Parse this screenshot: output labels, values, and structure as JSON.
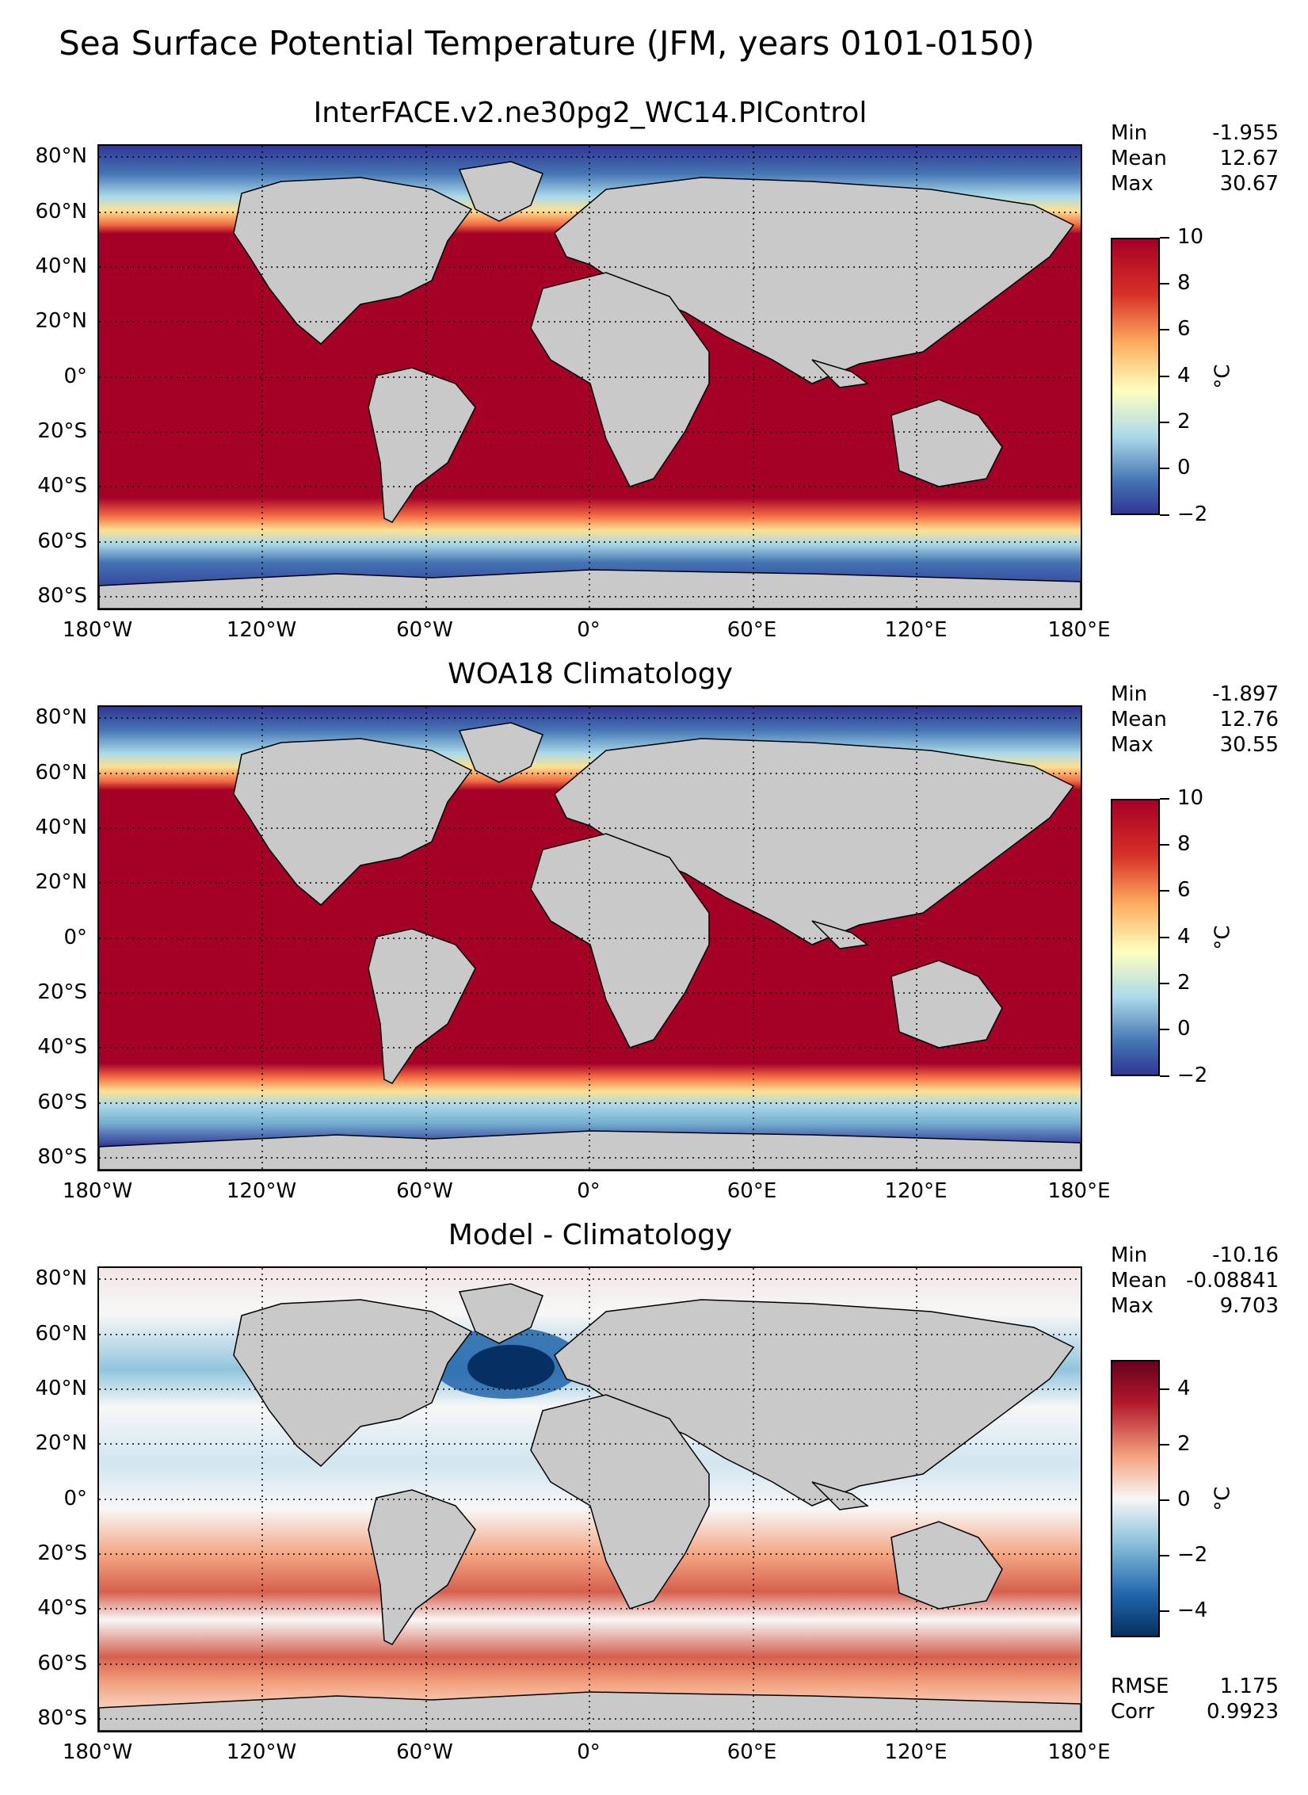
{
  "figure": {
    "suptitle": "Sea Surface Potential Temperature (JFM, years 0101-0150)"
  },
  "axes": {
    "lat_labels": [
      "80°N",
      "60°N",
      "40°N",
      "20°N",
      "0°",
      "20°S",
      "40°S",
      "60°S",
      "80°S"
    ],
    "lon_labels": [
      "180°W",
      "120°W",
      "60°W",
      "0°",
      "60°E",
      "120°E",
      "180°E"
    ]
  },
  "panels": [
    {
      "title": "InterFACE.v2.ne30pg2_WC14.PIControl",
      "stats": [
        {
          "label": "Min",
          "value": "-1.955"
        },
        {
          "label": "Mean",
          "value": "12.67"
        },
        {
          "label": "Max",
          "value": "30.67"
        }
      ],
      "colorbar": {
        "ticks": [
          "10",
          "8",
          "6",
          "4",
          "2",
          "0",
          "−2"
        ],
        "unit": "°C",
        "range": [
          -2,
          10
        ],
        "colormap": "RdYlBu_r"
      }
    },
    {
      "title": "WOA18 Climatology",
      "stats": [
        {
          "label": "Min",
          "value": "-1.897"
        },
        {
          "label": "Mean",
          "value": "12.76"
        },
        {
          "label": "Max",
          "value": "30.55"
        }
      ],
      "colorbar": {
        "ticks": [
          "10",
          "8",
          "6",
          "4",
          "2",
          "0",
          "−2"
        ],
        "unit": "°C",
        "range": [
          -2,
          10
        ],
        "colormap": "RdYlBu_r"
      }
    },
    {
      "title": "Model - Climatology",
      "stats": [
        {
          "label": "Min",
          "value": "-10.16"
        },
        {
          "label": "Mean",
          "value": "-0.08841"
        },
        {
          "label": "Max",
          "value": "9.703"
        }
      ],
      "extra_stats": [
        {
          "label": "RMSE",
          "value": "1.175"
        },
        {
          "label": "Corr",
          "value": "0.9923"
        }
      ],
      "colorbar": {
        "ticks": [
          "4",
          "2",
          "0",
          "−2",
          "−4"
        ],
        "unit": "°C",
        "range": [
          -5,
          5
        ],
        "colormap": "RdBu_r"
      }
    }
  ],
  "colors": {
    "land": "#c9c9c9",
    "warm": "#a50026",
    "cold": "#313695",
    "diff_pos": "#67001f",
    "diff_neg": "#053061"
  }
}
